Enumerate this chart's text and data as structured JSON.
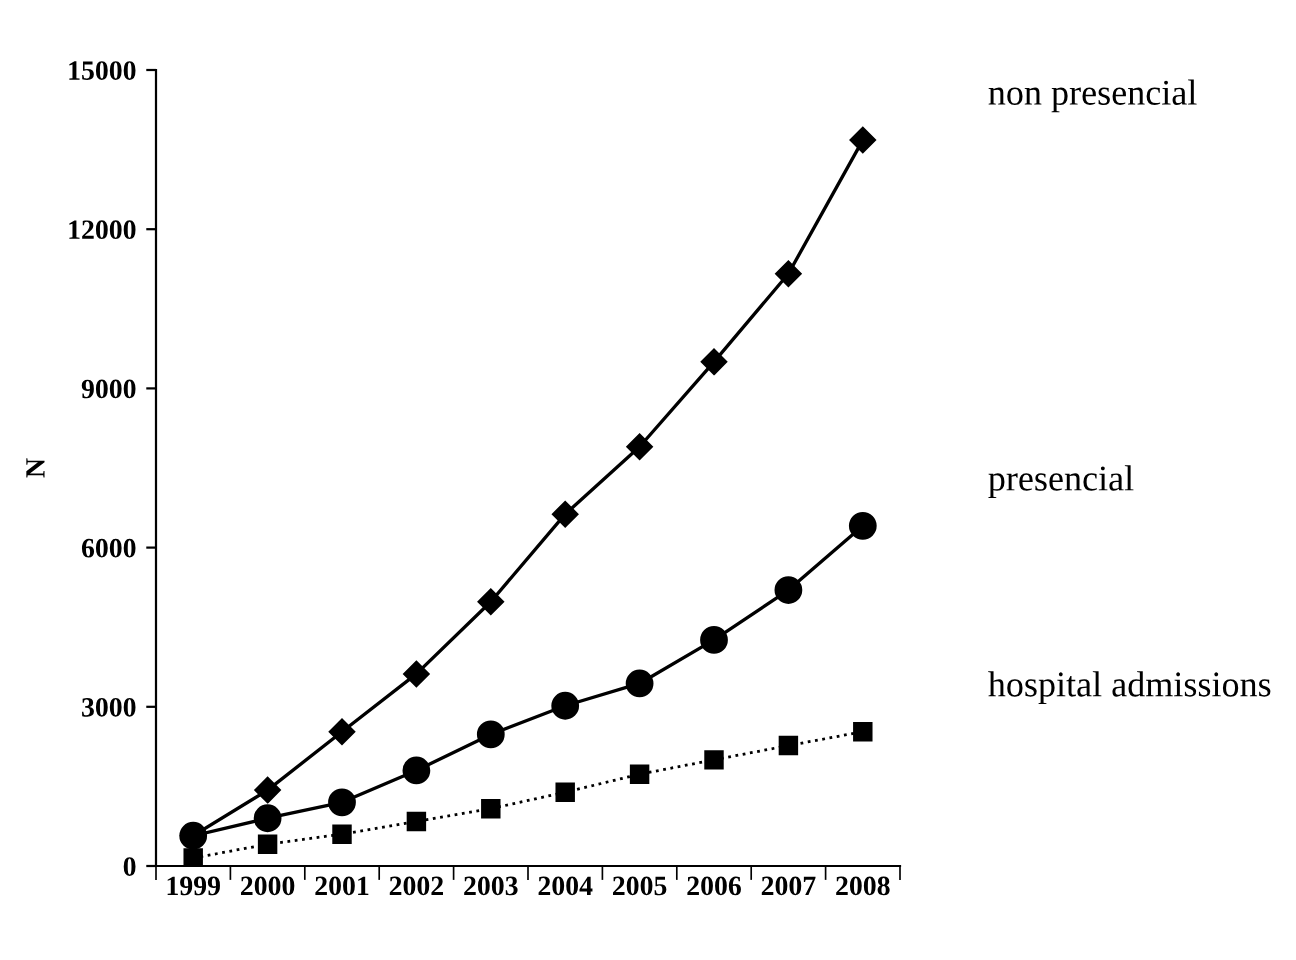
{
  "chart_data": {
    "type": "line",
    "ylabel": "N",
    "categories": [
      "1999",
      "2000",
      "2001",
      "2002",
      "2003",
      "2004",
      "2005",
      "2006",
      "2007",
      "2008"
    ],
    "series": [
      {
        "name": "non presencial",
        "color": "#000000",
        "marker": "diamond",
        "line_style": "solid",
        "values": [
          570,
          1430,
          2530,
          3620,
          4980,
          6630,
          7900,
          9500,
          11160,
          13680
        ]
      },
      {
        "name": "presencial",
        "color": "#000000",
        "marker": "circle",
        "line_style": "solid",
        "values": [
          570,
          900,
          1200,
          1800,
          2480,
          3020,
          3440,
          4260,
          5200,
          6410
        ]
      },
      {
        "name": "hospital admissions",
        "color": "#000000",
        "marker": "square",
        "line_style": "dotted",
        "values": [
          150,
          410,
          600,
          840,
          1080,
          1390,
          1730,
          2000,
          2270,
          2530
        ]
      }
    ],
    "ylim": [
      0,
      15000
    ],
    "yticks": [
      0,
      3000,
      6000,
      9000,
      12000,
      15000
    ],
    "grid": false,
    "legend": false
  }
}
